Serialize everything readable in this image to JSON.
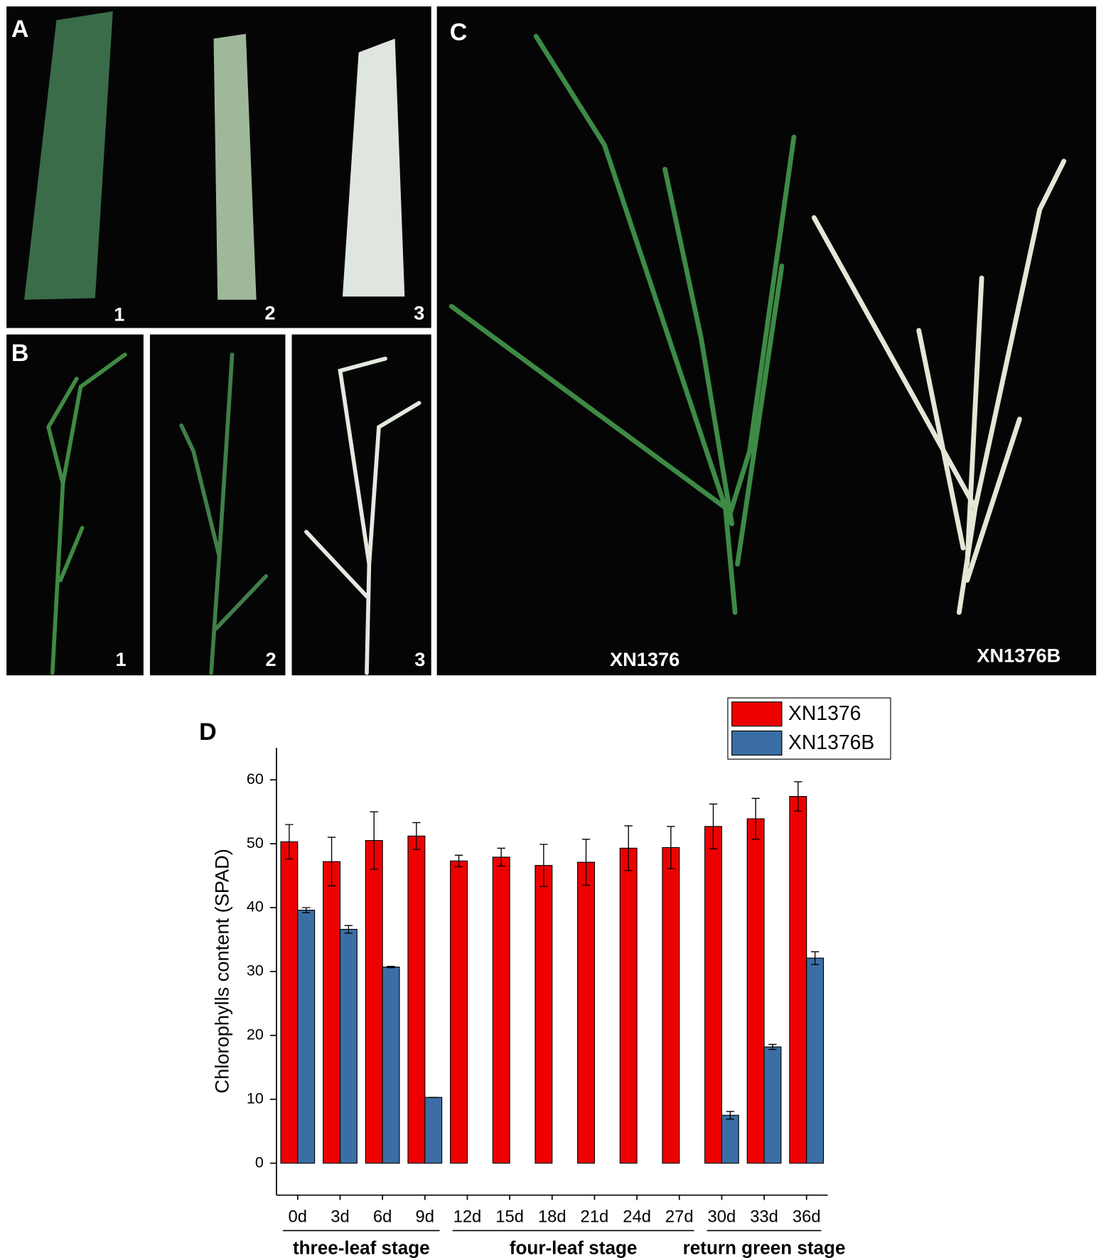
{
  "panels": {
    "A": {
      "label": "A",
      "items": [
        "1",
        "2",
        "3"
      ]
    },
    "B": {
      "label": "B",
      "items": [
        "1",
        "2",
        "3"
      ]
    },
    "C": {
      "label": "C",
      "items": [
        "XN1376",
        "XN1376B"
      ]
    }
  },
  "chart_data": {
    "type": "bar",
    "label": "D",
    "y_label": "Chlorophylls content (SPAD)",
    "groups": [
      {
        "name": "three-leaf stage",
        "categories": [
          "0d",
          "3d",
          "6d",
          "9d"
        ]
      },
      {
        "name": "four-leaf stage",
        "categories": [
          "12d",
          "15d",
          "18d",
          "21d",
          "24d",
          "27d"
        ]
      },
      {
        "name": "return green stage",
        "categories": [
          "30d",
          "33d",
          "36d"
        ]
      }
    ],
    "series": [
      {
        "name": "XN1376",
        "color": "#ee0000",
        "values": [
          50.3,
          47.2,
          50.5,
          51.2,
          47.3,
          47.9,
          46.6,
          47.1,
          49.3,
          49.4,
          52.7,
          53.9,
          57.4
        ],
        "errors": [
          2.7,
          3.8,
          4.5,
          2.1,
          0.9,
          1.4,
          3.3,
          3.6,
          3.5,
          3.3,
          3.5,
          3.2,
          2.3
        ]
      },
      {
        "name": "XN1376B",
        "color": "#3b6ea5",
        "values": [
          39.6,
          36.6,
          30.7,
          10.3,
          null,
          null,
          null,
          null,
          null,
          null,
          7.5,
          18.2,
          32.1
        ],
        "errors": [
          0.4,
          0.6,
          0.1,
          0,
          null,
          null,
          null,
          null,
          null,
          null,
          0.6,
          0.4,
          1.0
        ]
      }
    ],
    "ylim": [
      -5,
      65
    ],
    "yticks": [
      0,
      10,
      20,
      30,
      40,
      50,
      60
    ]
  }
}
